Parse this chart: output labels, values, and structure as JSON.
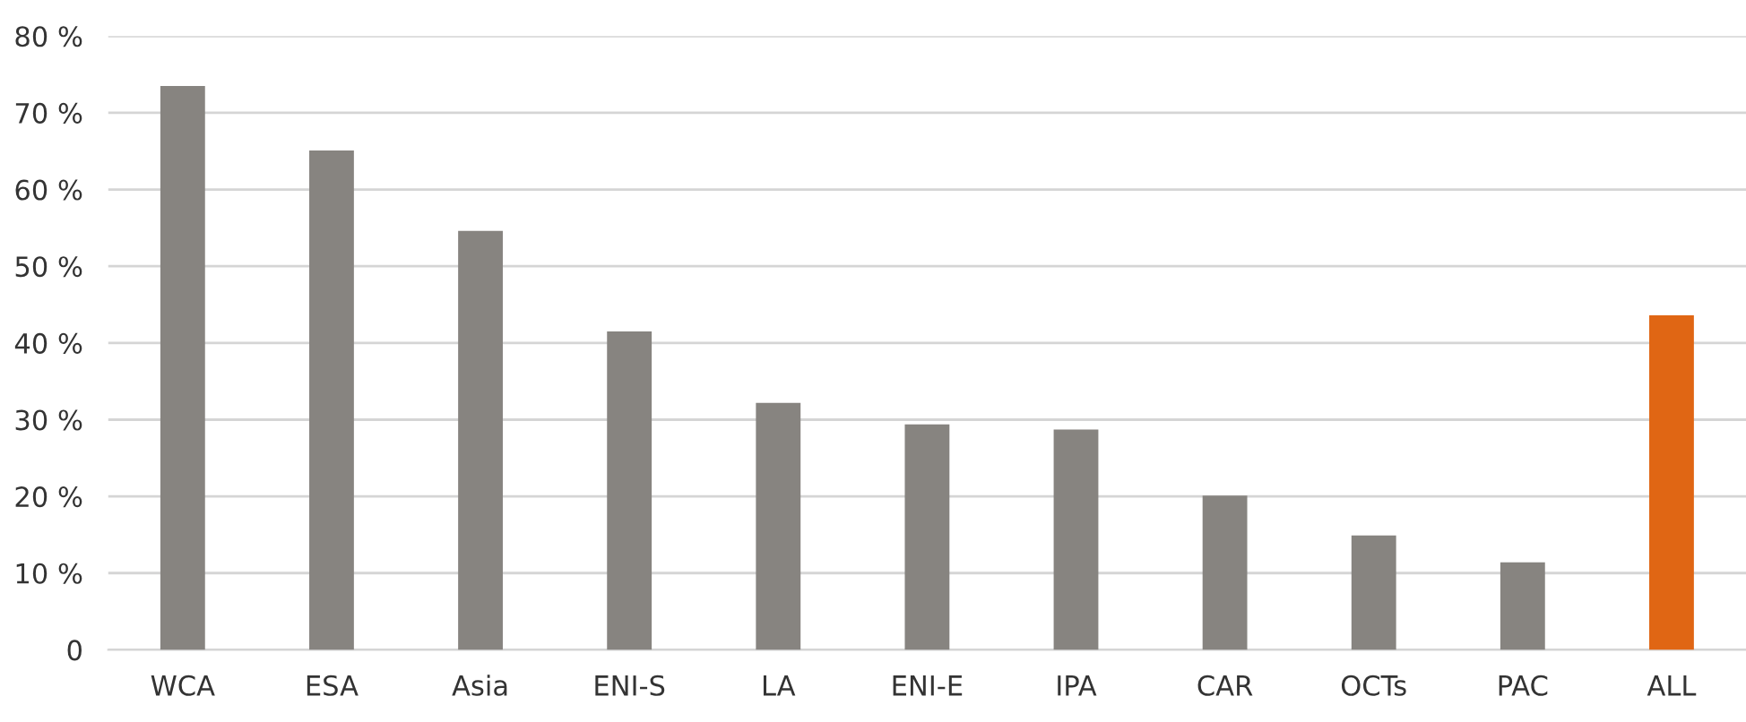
{
  "chart_data": {
    "type": "bar",
    "categories": [
      "WCA",
      "ESA",
      "Asia",
      "ENI-S",
      "LA",
      "ENI-E",
      "IPA",
      "CAR",
      "OCTs",
      "PAC",
      "ALL"
    ],
    "values": [
      73.5,
      65.1,
      54.6,
      41.5,
      32.2,
      29.4,
      28.7,
      20.1,
      14.9,
      11.4,
      43.6
    ],
    "colors": [
      "#878480",
      "#878480",
      "#878480",
      "#878480",
      "#878480",
      "#878480",
      "#878480",
      "#878480",
      "#878480",
      "#878480",
      "#e06614"
    ],
    "ylim": [
      0,
      80
    ],
    "yticks": [
      0,
      {
        "value": 10,
        "label": "10 %"
      },
      {
        "value": 20,
        "label": "20 %"
      },
      {
        "value": 30,
        "label": "30 %"
      },
      {
        "value": 40,
        "label": "40 %"
      },
      {
        "value": 50,
        "label": "50 %"
      },
      {
        "value": 60,
        "label": "60 %"
      },
      {
        "value": 70,
        "label": "70 %"
      },
      {
        "value": 80,
        "label": "80 %"
      }
    ],
    "grid": "y"
  }
}
